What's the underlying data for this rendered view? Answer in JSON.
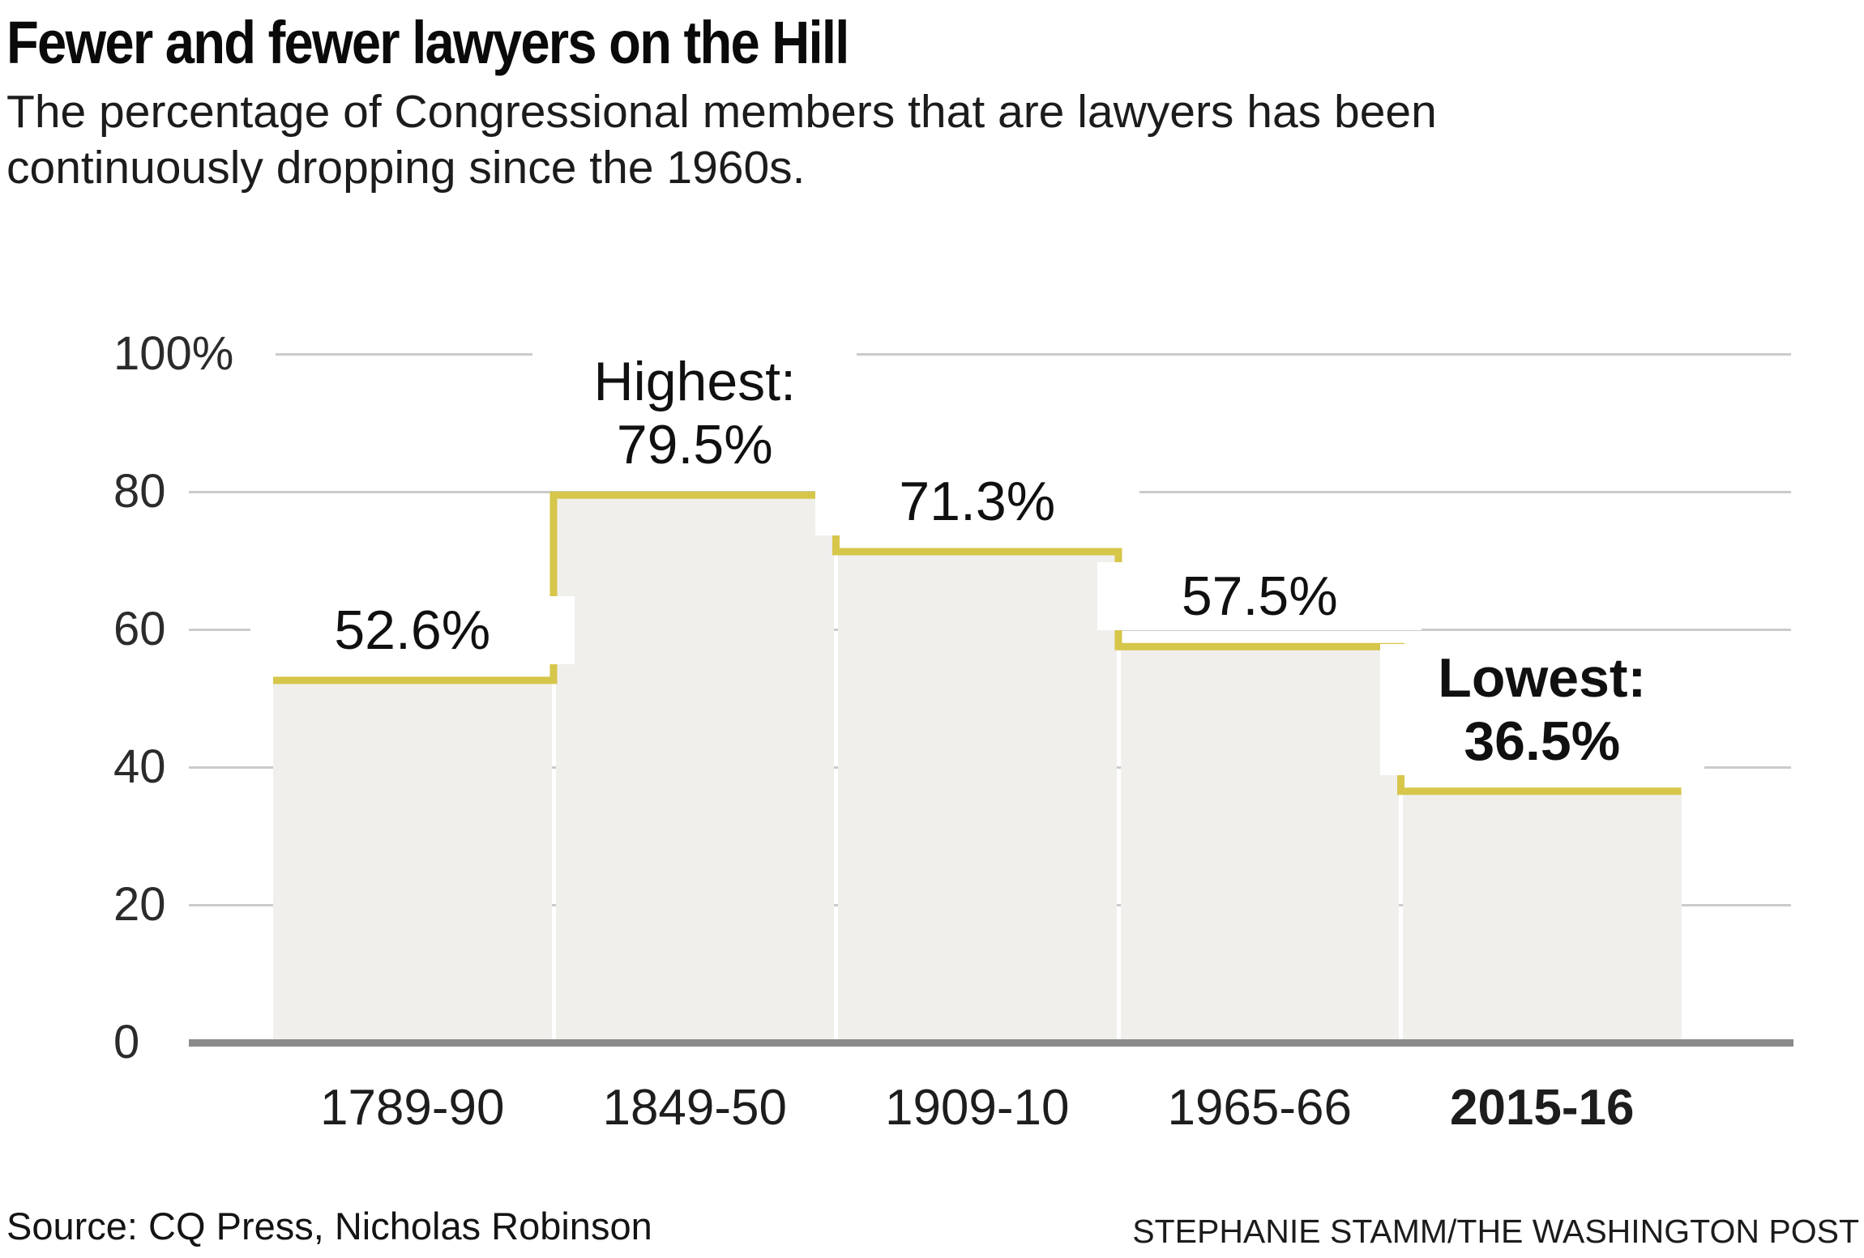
{
  "header": {
    "title": "Fewer and fewer lawyers on the Hill",
    "subtitle": "The percentage of Congressional members that are lawyers has been continuously dropping since the 1960s."
  },
  "footer": {
    "source": "Source: CQ Press, Nicholas Robinson",
    "credit": "STEPHANIE STAMM/THE WASHINGTON POST"
  },
  "colors": {
    "step_line": "#d6c64a",
    "bar_fill": "#f0efec",
    "grid_line": "#cbcbcb",
    "axis_line": "#8a8a8a",
    "text": "#111111"
  },
  "chart_data": {
    "type": "bar",
    "title": "Fewer and fewer lawyers on the Hill",
    "subtitle": "The percentage of Congressional members that are lawyers has been continuously dropping since the 1960s.",
    "categories": [
      "1789-90",
      "1849-50",
      "1909-10",
      "1965-66",
      "2015-16"
    ],
    "values": [
      52.6,
      79.5,
      71.3,
      57.5,
      36.5
    ],
    "value_labels": [
      {
        "lines": [
          "52.6%"
        ],
        "bold": false
      },
      {
        "lines": [
          "Highest:",
          "79.5%"
        ],
        "bold": false
      },
      {
        "lines": [
          "71.3%"
        ],
        "bold": false
      },
      {
        "lines": [
          "57.5%"
        ],
        "bold": false
      },
      {
        "lines": [
          "Lowest:",
          "36.5%"
        ],
        "bold": true
      }
    ],
    "bold_categories": [
      false,
      false,
      false,
      false,
      true
    ],
    "y_ticks": [
      {
        "label": "100%",
        "value": 100
      },
      {
        "label": "80",
        "value": 80
      },
      {
        "label": "60",
        "value": 60
      },
      {
        "label": "40",
        "value": 40
      },
      {
        "label": "20",
        "value": 20
      },
      {
        "label": "0",
        "value": 0
      }
    ],
    "xlabel": "",
    "ylabel": "",
    "ylim": [
      0,
      100
    ],
    "unit": "%",
    "grid": true,
    "legend": "none",
    "annotations": {
      "highest": "Highest: 79.5%",
      "lowest": "Lowest: 36.5%"
    }
  }
}
